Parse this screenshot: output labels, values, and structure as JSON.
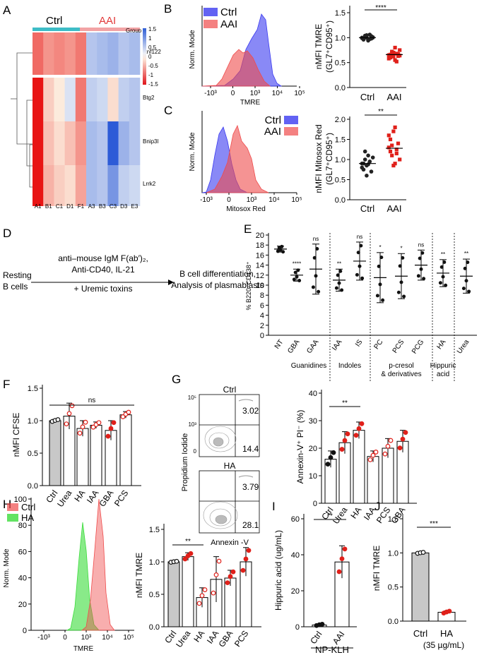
{
  "colors": {
    "ctrl": "#3b3bf0",
    "aai": "#ef4b4b",
    "ha_green": "#3bdc3b",
    "grey": "#c8c8c8",
    "black": "#222222",
    "heat_cyan": "#3dbcc6",
    "heat_pink": "#f2a3a5"
  },
  "panels": {
    "A": {
      "label": "A",
      "groups": [
        "Ctrl",
        "AAI"
      ],
      "legend_title": "Group",
      "scale_ticks": [
        "1.5",
        "1",
        "0.5",
        "0",
        "-0.5",
        "-1",
        "-1.5"
      ],
      "genes": [
        "Rnf122",
        "Btg2",
        "Bnip3l",
        "Lrrk2"
      ],
      "samples": [
        "A1",
        "B1",
        "C1",
        "D1",
        "F1",
        "A3",
        "B3",
        "C3",
        "D3",
        "E3"
      ],
      "chart_data": {
        "type": "heatmap",
        "rows": [
          "Rnf122",
          "Btg2",
          "Bnip3l",
          "Lrrk2"
        ],
        "columns": [
          "A1",
          "B1",
          "C1",
          "D1",
          "F1",
          "A3",
          "B3",
          "C3",
          "D3",
          "E3"
        ],
        "values": [
          [
            0.9,
            0.6,
            0.7,
            0.6,
            0.8,
            -0.4,
            -0.5,
            -0.6,
            -0.4,
            -0.5
          ],
          [
            1.5,
            0.2,
            0.0,
            -0.1,
            0.8,
            -0.3,
            -0.2,
            0.1,
            -0.3,
            -0.4
          ],
          [
            1.5,
            0.3,
            0.1,
            0.3,
            0.6,
            -0.5,
            -0.4,
            -1.5,
            -0.6,
            -0.4
          ],
          [
            1.5,
            0.4,
            0.2,
            0.1,
            0.5,
            -0.5,
            -0.4,
            -0.9,
            -0.3,
            -0.2
          ]
        ]
      }
    },
    "B": {
      "label": "B",
      "ylabel": "Norm. Mode",
      "xlabel": "TMRE",
      "legend": [
        "Ctrl",
        "AAI"
      ],
      "xticks": [
        "-10³",
        "0",
        "10³",
        "10⁴",
        "10⁵"
      ],
      "chart_data": {
        "type": "area",
        "x": [
          -1,
          0,
          1,
          2,
          3,
          3.5,
          4,
          4.5,
          5
        ],
        "series": [
          {
            "name": "Ctrl",
            "values": [
              0,
              2,
              10,
              25,
              70,
              100,
              30,
              2,
              0
            ]
          },
          {
            "name": "AAI",
            "values": [
              0,
              10,
              40,
              60,
              45,
              15,
              3,
              0,
              0
            ]
          }
        ],
        "ylim": [
          0,
          100
        ]
      }
    },
    "B2": {
      "ylabel": "nMFI TMRE",
      "ylabel2": "(GL7⁺CD95⁺)",
      "categories": [
        "Ctrl",
        "AAI"
      ],
      "yticks": [
        "0.0",
        "0.5",
        "1.0",
        "1.5"
      ],
      "sig": "****",
      "chart_data": {
        "type": "scatter",
        "categories": [
          "Ctrl",
          "AAI"
        ],
        "series": [
          {
            "name": "Ctrl",
            "values": [
              1.0,
              0.98,
              1.02,
              1.05,
              0.95,
              0.97,
              1.03,
              1.01,
              0.99,
              0.96,
              1.04,
              1.0,
              0.94,
              1.06,
              0.98,
              1.0
            ]
          },
          {
            "name": "AAI",
            "values": [
              0.65,
              0.6,
              0.72,
              0.7,
              0.55,
              0.68,
              0.63,
              0.75,
              0.58,
              0.66,
              0.7,
              0.62,
              0.8,
              0.52,
              0.67,
              0.64
            ]
          }
        ],
        "ylim": [
          0,
          1.5
        ],
        "means": [
          1.0,
          0.66
        ]
      }
    },
    "C": {
      "label": "C",
      "ylabel": "Norm. Mode",
      "xlabel": "Mitosox Red",
      "legend": [
        "Ctrl",
        "AAI"
      ],
      "xticks": [
        "-10³",
        "0",
        "10³",
        "10⁴",
        "10⁵"
      ],
      "chart_data": {
        "type": "area",
        "x": [
          -1,
          -0.5,
          0,
          0.5,
          1,
          1.5,
          2,
          2.5,
          3
        ],
        "series": [
          {
            "name": "Ctrl",
            "values": [
              0,
              20,
              85,
              100,
              30,
              10,
              2,
              0,
              0
            ]
          },
          {
            "name": "AAI",
            "values": [
              0,
              5,
              30,
              60,
              100,
              70,
              30,
              5,
              0
            ]
          }
        ],
        "ylim": [
          0,
          100
        ]
      }
    },
    "C2": {
      "ylabel": "nMFI Mitosox Red",
      "ylabel2": "(GL7⁺CD95⁺)",
      "categories": [
        "Ctrl",
        "AAI"
      ],
      "yticks": [
        "0.0",
        "0.5",
        "1.0",
        "1.5",
        "2.0"
      ],
      "sig": "**",
      "chart_data": {
        "type": "scatter",
        "categories": [
          "Ctrl",
          "AAI"
        ],
        "series": [
          {
            "name": "Ctrl",
            "values": [
              0.9,
              0.75,
              1.0,
              0.85,
              1.1,
              0.95,
              0.7,
              1.05,
              0.8,
              0.9,
              1.2,
              0.6,
              0.88
            ]
          },
          {
            "name": "AAI",
            "values": [
              1.3,
              1.5,
              1.1,
              1.7,
              0.9,
              1.25,
              1.4,
              1.0,
              1.6,
              1.2,
              1.35,
              0.85,
              1.8,
              1.15
            ]
          }
        ],
        "ylim": [
          0,
          2.0
        ],
        "means": [
          0.9,
          1.28
        ]
      }
    },
    "D": {
      "label": "D",
      "line1": "anti–mouse IgM F(ab′)₂,",
      "line2": "Anti-CD40, IL-21",
      "line3": "+ Uremic toxins",
      "left1": "Resting",
      "left2": "B cells",
      "right1": "B cell differentiation,",
      "right2": "Analysis of plasmablasts"
    },
    "E": {
      "label": "E",
      "ylabel": "% B220⁻CD138⁺",
      "yticks": [
        "0",
        "2",
        "4",
        "6",
        "8",
        "10",
        "12",
        "14",
        "16",
        "18",
        "20"
      ],
      "categories": [
        "NT",
        "GBA",
        "GAA",
        "IAA",
        "IS",
        "PC",
        "PCS",
        "PCG",
        "HA",
        "Urea"
      ],
      "groups": [
        {
          "name": "Guanidines",
          "name2": ""
        },
        {
          "name": "Indoles",
          "name2": ""
        },
        {
          "name": "p-cresol",
          "name2": "& derivatives"
        },
        {
          "name": "Hippuric",
          "name2": "acid"
        },
        {
          "name": "",
          "name2": ""
        }
      ],
      "sig": [
        "",
        "****",
        "ns",
        "**",
        "ns",
        "*",
        "*",
        "ns",
        "**",
        "**"
      ],
      "chart_data": {
        "type": "scatter",
        "categories": [
          "NT",
          "GBA",
          "GAA",
          "IAA",
          "IS",
          "PC",
          "PCS",
          "PCG",
          "HA",
          "Urea"
        ],
        "means": [
          17.2,
          12.0,
          13.2,
          11.0,
          14.8,
          11.5,
          11.8,
          14.0,
          12.4,
          11.8
        ],
        "sd": [
          0.6,
          1.2,
          5.0,
          2.2,
          3.8,
          5.0,
          4.5,
          3.0,
          2.7,
          3.4
        ],
        "ylim": [
          0,
          20
        ]
      }
    },
    "F": {
      "label": "F",
      "ylabel": "nMFI CFSE",
      "categories": [
        "Ctrl",
        "Urea",
        "HA",
        "IAA",
        "GBA",
        "PCS"
      ],
      "yticks": [
        "0.0",
        "0.5",
        "1.0",
        "1.5"
      ],
      "sig": "ns",
      "chart_data": {
        "type": "bar",
        "categories": [
          "Ctrl",
          "Urea",
          "HA",
          "IAA",
          "GBA",
          "PCS"
        ],
        "values": [
          1.0,
          1.07,
          0.88,
          0.93,
          0.85,
          1.09
        ],
        "sd": [
          0.02,
          0.2,
          0.12,
          0.05,
          0.15,
          0.05
        ],
        "ylim": [
          0,
          1.5
        ]
      }
    },
    "G": {
      "label": "G",
      "ctrl": "Ctrl",
      "ha": "HA",
      "q_ctrl_ur": "3.02",
      "q_ctrl_lr": "14.4",
      "q_ha_ur": "3.79",
      "q_ha_lr": "28.1",
      "ylab": "Propidium Iodide",
      "xlab": "Annexin -V"
    },
    "G2": {
      "ylabel": "Annexin-V⁺ PI⁻ (%)",
      "categories": [
        "Ctrl",
        "Urea",
        "HA",
        "IAA",
        "PCS",
        "GBA"
      ],
      "yticks": [
        "0",
        "10",
        "20",
        "30",
        "40"
      ],
      "sig": "**",
      "chart_data": {
        "type": "bar",
        "categories": [
          "Ctrl",
          "Urea",
          "HA",
          "IAA",
          "PCS",
          "GBA"
        ],
        "values": [
          16,
          22,
          26.5,
          17,
          20,
          22.5
        ],
        "sd": [
          3,
          4,
          3,
          2,
          3.5,
          4
        ],
        "ylim": [
          0,
          40
        ]
      }
    },
    "H": {
      "label": "H",
      "ylabel": "Norm. Mode",
      "xlabel": "TMRE",
      "legend": [
        "Ctrl",
        "HA"
      ],
      "yticks": [
        "0",
        "20",
        "40",
        "60",
        "80",
        "100"
      ],
      "xticks": [
        "-10³",
        "0",
        "10³",
        "10⁴",
        "10⁵"
      ],
      "chart_data": {
        "type": "area",
        "x": [
          2,
          2.5,
          3,
          3.5,
          4,
          4.5
        ],
        "series": [
          {
            "name": "Ctrl",
            "values": [
              0,
              5,
              40,
              100,
              40,
              0
            ]
          },
          {
            "name": "HA",
            "values": [
              10,
              60,
              100,
              30,
              5,
              0
            ]
          }
        ],
        "ylim": [
          0,
          100
        ]
      }
    },
    "H2": {
      "ylabel": "nMFI TMRE",
      "categories": [
        "Ctrl",
        "Urea",
        "HA",
        "IAA",
        "GBA",
        "PCS"
      ],
      "yticks": [
        "0.0",
        "0.5",
        "1.0",
        "1.5"
      ],
      "sig": "**",
      "chart_data": {
        "type": "bar",
        "categories": [
          "Ctrl",
          "Urea",
          "HA",
          "IAA",
          "GBA",
          "PCS"
        ],
        "values": [
          1.0,
          1.08,
          0.45,
          0.73,
          0.75,
          1.0
        ],
        "sd": [
          0.01,
          0.06,
          0.15,
          0.35,
          0.12,
          0.22
        ],
        "ylim": [
          0,
          1.5
        ]
      }
    },
    "I": {
      "label": "I",
      "ylabel": "Hippuric acid (ug/mL)",
      "categories": [
        "Ctrl",
        "AAI"
      ],
      "group": "NP-KLH",
      "yticks": [
        "0",
        "20",
        "40",
        "60"
      ],
      "sig": "**",
      "chart_data": {
        "type": "bar",
        "categories": [
          "Ctrl",
          "AAI"
        ],
        "values": [
          1,
          36
        ],
        "sd": [
          0.5,
          9
        ],
        "ylim": [
          0,
          60
        ]
      }
    },
    "J": {
      "label": "J",
      "ylabel": "nMFI TMRE",
      "categories": [
        "Ctrl",
        "HA"
      ],
      "note": "(35 µg/mL)",
      "yticks": [
        "0.0",
        "0.5",
        "1.0",
        "1.5"
      ],
      "sig": "***",
      "chart_data": {
        "type": "bar",
        "categories": [
          "Ctrl",
          "HA"
        ],
        "values": [
          1.0,
          0.13
        ],
        "sd": [
          0.01,
          0.02
        ],
        "ylim": [
          0,
          1.5
        ]
      }
    }
  }
}
